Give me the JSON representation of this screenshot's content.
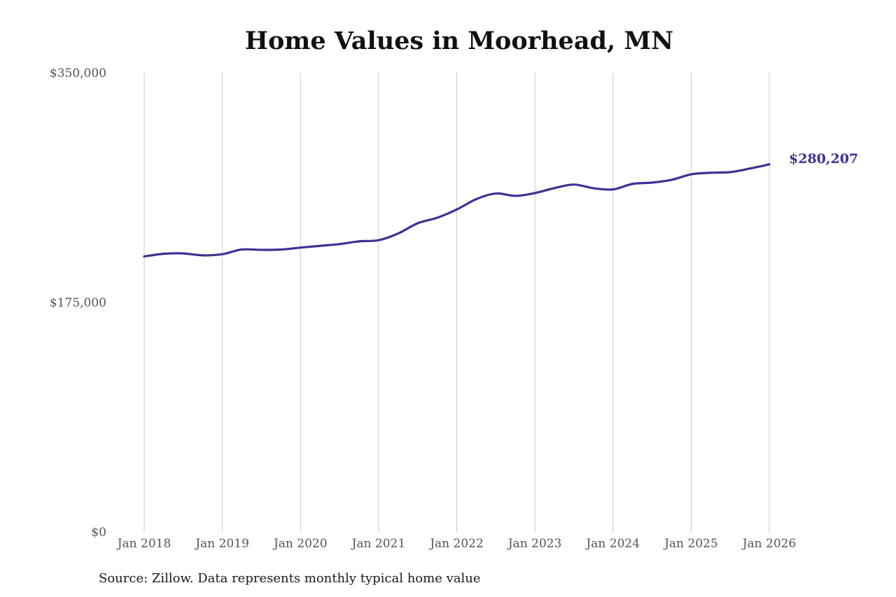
{
  "chart_data": {
    "type": "line",
    "title": "Home Values in Moorhead, MN",
    "ylim": [
      0,
      350000
    ],
    "yticks": [
      {
        "value": 0,
        "label": "$0"
      },
      {
        "value": 175000,
        "label": "$175,000"
      },
      {
        "value": 350000,
        "label": "$350,000"
      }
    ],
    "xticks": [
      {
        "value": "2018-01",
        "label": "Jan 2018"
      },
      {
        "value": "2019-01",
        "label": "Jan 2019"
      },
      {
        "value": "2020-01",
        "label": "Jan 2020"
      },
      {
        "value": "2021-01",
        "label": "Jan 2021"
      },
      {
        "value": "2022-01",
        "label": "Jan 2022"
      },
      {
        "value": "2023-01",
        "label": "Jan 2023"
      },
      {
        "value": "2024-01",
        "label": "Jan 2024"
      },
      {
        "value": "2025-01",
        "label": "Jan 2025"
      },
      {
        "value": "2026-01",
        "label": "Jan 2026"
      }
    ],
    "xlim": [
      "2018-01",
      "2026-01"
    ],
    "grid": "vertical",
    "line_color": "#3b3294",
    "series": [
      {
        "values": [
          {
            "x": "2018-01",
            "y": 210000
          },
          {
            "x": "2018-04",
            "y": 212000
          },
          {
            "x": "2018-07",
            "y": 212300
          },
          {
            "x": "2018-10",
            "y": 210800
          },
          {
            "x": "2019-01",
            "y": 211700
          },
          {
            "x": "2019-04",
            "y": 215300
          },
          {
            "x": "2019-07",
            "y": 215000
          },
          {
            "x": "2019-10",
            "y": 215300
          },
          {
            "x": "2020-01",
            "y": 216700
          },
          {
            "x": "2020-04",
            "y": 218100
          },
          {
            "x": "2020-07",
            "y": 219400
          },
          {
            "x": "2020-10",
            "y": 221500
          },
          {
            "x": "2021-01",
            "y": 222400
          },
          {
            "x": "2021-04",
            "y": 227500
          },
          {
            "x": "2021-07",
            "y": 235300
          },
          {
            "x": "2021-10",
            "y": 239500
          },
          {
            "x": "2022-01",
            "y": 245800
          },
          {
            "x": "2022-04",
            "y": 253700
          },
          {
            "x": "2022-07",
            "y": 258000
          },
          {
            "x": "2022-10",
            "y": 256200
          },
          {
            "x": "2023-01",
            "y": 258300
          },
          {
            "x": "2023-04",
            "y": 262100
          },
          {
            "x": "2023-07",
            "y": 264800
          },
          {
            "x": "2023-10",
            "y": 262000
          },
          {
            "x": "2024-01",
            "y": 261100
          },
          {
            "x": "2024-04",
            "y": 265300
          },
          {
            "x": "2024-07",
            "y": 266300
          },
          {
            "x": "2024-10",
            "y": 268400
          },
          {
            "x": "2025-01",
            "y": 272600
          },
          {
            "x": "2025-04",
            "y": 273800
          },
          {
            "x": "2025-07",
            "y": 274300
          },
          {
            "x": "2025-10",
            "y": 277000
          },
          {
            "x": "2026-01",
            "y": 280207
          }
        ]
      }
    ],
    "end_label": "$280,207"
  },
  "footer": {
    "source": "Source: Zillow. Data represents monthly typical home value"
  }
}
